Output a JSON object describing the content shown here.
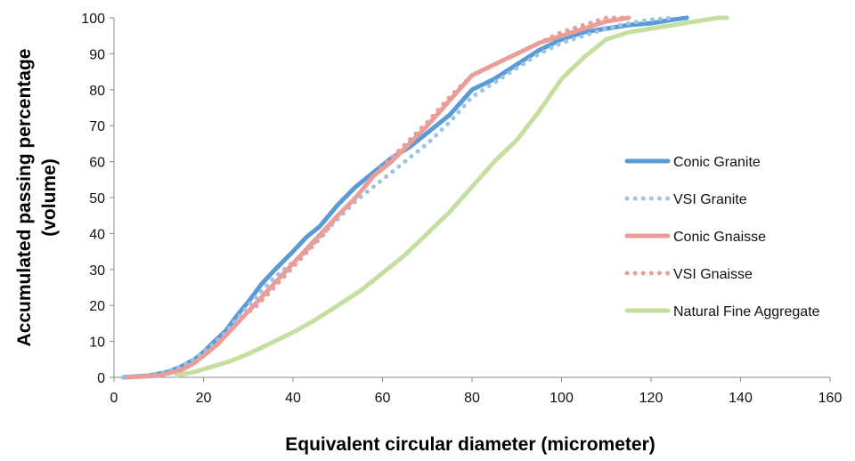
{
  "chart_data": {
    "type": "line",
    "title": "",
    "xlabel": "Equivalent circular diameter (micrometer)",
    "ylabel_lines": [
      "Accumulated passing percentage",
      "(volume)"
    ],
    "xlim": [
      0,
      160
    ],
    "ylim": [
      0,
      100
    ],
    "xticks": [
      0,
      20,
      40,
      60,
      80,
      100,
      120,
      140,
      160
    ],
    "yticks": [
      0,
      10,
      20,
      30,
      40,
      50,
      60,
      70,
      80,
      90,
      100
    ],
    "grid": false,
    "legend_position": "right",
    "series": [
      {
        "name": "Conic Granite",
        "color": "#5b9bd5",
        "style": "solid",
        "points": [
          [
            2,
            0
          ],
          [
            8,
            0.5
          ],
          [
            12,
            1.5
          ],
          [
            15,
            3
          ],
          [
            18,
            5
          ],
          [
            20,
            7
          ],
          [
            22,
            9.5
          ],
          [
            25,
            13
          ],
          [
            28,
            18
          ],
          [
            30,
            21
          ],
          [
            33,
            26
          ],
          [
            36,
            30
          ],
          [
            40,
            35
          ],
          [
            43,
            39
          ],
          [
            46,
            42
          ],
          [
            50,
            48
          ],
          [
            54,
            53
          ],
          [
            58,
            57
          ],
          [
            62,
            61
          ],
          [
            66,
            64
          ],
          [
            70,
            68
          ],
          [
            75,
            73
          ],
          [
            80,
            80
          ],
          [
            85,
            83
          ],
          [
            90,
            87
          ],
          [
            95,
            91
          ],
          [
            100,
            94
          ],
          [
            105,
            96
          ],
          [
            110,
            97
          ],
          [
            115,
            98
          ],
          [
            120,
            98.5
          ],
          [
            125,
            99.5
          ],
          [
            128,
            100
          ]
        ]
      },
      {
        "name": "VSI Granite",
        "color": "#9dc3e6",
        "style": "dotted",
        "points": [
          [
            2,
            0
          ],
          [
            8,
            0.5
          ],
          [
            12,
            1.5
          ],
          [
            15,
            3
          ],
          [
            18,
            5
          ],
          [
            20,
            7
          ],
          [
            22,
            9
          ],
          [
            25,
            12.5
          ],
          [
            28,
            17
          ],
          [
            30,
            20
          ],
          [
            33,
            24
          ],
          [
            36,
            28
          ],
          [
            40,
            32
          ],
          [
            43,
            35
          ],
          [
            46,
            39
          ],
          [
            50,
            44
          ],
          [
            54,
            49
          ],
          [
            58,
            53
          ],
          [
            62,
            57
          ],
          [
            66,
            61
          ],
          [
            70,
            65
          ],
          [
            75,
            71
          ],
          [
            80,
            78
          ],
          [
            85,
            82
          ],
          [
            90,
            86
          ],
          [
            95,
            90
          ],
          [
            100,
            93
          ],
          [
            105,
            95
          ],
          [
            110,
            97
          ],
          [
            115,
            98.5
          ],
          [
            120,
            99.5
          ],
          [
            125,
            100
          ]
        ]
      },
      {
        "name": "Conic Gnaisse",
        "color": "#ea9e9a",
        "style": "solid",
        "points": [
          [
            3,
            0
          ],
          [
            10,
            0.5
          ],
          [
            15,
            2
          ],
          [
            18,
            4
          ],
          [
            20,
            6
          ],
          [
            23,
            9
          ],
          [
            26,
            13
          ],
          [
            29,
            17
          ],
          [
            32,
            21
          ],
          [
            35,
            25
          ],
          [
            38,
            29
          ],
          [
            41,
            33
          ],
          [
            44,
            37
          ],
          [
            47,
            41
          ],
          [
            50,
            45
          ],
          [
            54,
            50
          ],
          [
            58,
            56
          ],
          [
            62,
            60
          ],
          [
            66,
            65
          ],
          [
            70,
            70
          ],
          [
            75,
            77
          ],
          [
            80,
            84
          ],
          [
            85,
            87
          ],
          [
            90,
            90
          ],
          [
            95,
            93
          ],
          [
            100,
            95
          ],
          [
            105,
            97
          ],
          [
            110,
            99
          ],
          [
            115,
            100
          ]
        ]
      },
      {
        "name": "VSI Gnaisse",
        "color": "#ea9e9a",
        "style": "dotted",
        "points": [
          [
            3,
            0
          ],
          [
            10,
            0.5
          ],
          [
            15,
            2
          ],
          [
            18,
            4
          ],
          [
            20,
            6
          ],
          [
            23,
            9
          ],
          [
            26,
            13
          ],
          [
            29,
            17
          ],
          [
            32,
            20
          ],
          [
            35,
            24
          ],
          [
            38,
            28
          ],
          [
            41,
            32
          ],
          [
            44,
            36
          ],
          [
            47,
            40
          ],
          [
            50,
            45
          ],
          [
            54,
            50
          ],
          [
            58,
            56
          ],
          [
            62,
            61
          ],
          [
            66,
            66
          ],
          [
            70,
            71
          ],
          [
            75,
            78
          ],
          [
            80,
            84
          ],
          [
            85,
            87
          ],
          [
            90,
            90
          ],
          [
            95,
            93
          ],
          [
            100,
            96
          ],
          [
            105,
            98
          ],
          [
            110,
            100
          ],
          [
            115,
            100
          ]
        ]
      },
      {
        "name": "Natural Fine Aggregate",
        "color": "#c4dfa0",
        "style": "solid",
        "points": [
          [
            14,
            0.5
          ],
          [
            18,
            1.5
          ],
          [
            22,
            3
          ],
          [
            26,
            4.5
          ],
          [
            30,
            6.5
          ],
          [
            35,
            9.5
          ],
          [
            40,
            12.5
          ],
          [
            45,
            16
          ],
          [
            50,
            20
          ],
          [
            55,
            24
          ],
          [
            60,
            29
          ],
          [
            65,
            34
          ],
          [
            70,
            40
          ],
          [
            75,
            46
          ],
          [
            80,
            53
          ],
          [
            85,
            60
          ],
          [
            90,
            66
          ],
          [
            95,
            74
          ],
          [
            100,
            83
          ],
          [
            105,
            89
          ],
          [
            110,
            94
          ],
          [
            115,
            96
          ],
          [
            120,
            97
          ],
          [
            125,
            98
          ],
          [
            130,
            99
          ],
          [
            135,
            100
          ],
          [
            137,
            100
          ]
        ]
      }
    ]
  }
}
